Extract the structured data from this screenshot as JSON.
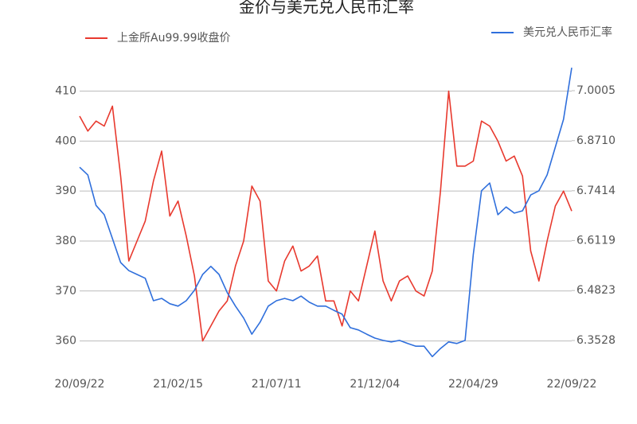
{
  "chart_data": {
    "type": "line",
    "title": "金价与美元兑人民币汇率",
    "categories": [
      "20/09/22",
      null,
      null,
      null,
      null,
      null,
      null,
      null,
      null,
      null,
      null,
      null,
      "21/02/15",
      null,
      null,
      null,
      null,
      null,
      null,
      null,
      null,
      null,
      null,
      null,
      "21/07/11",
      null,
      null,
      null,
      null,
      null,
      null,
      null,
      null,
      null,
      null,
      null,
      "21/12/04",
      null,
      null,
      null,
      null,
      null,
      null,
      null,
      null,
      null,
      null,
      null,
      "22/04/29",
      null,
      null,
      null,
      null,
      null,
      null,
      null,
      null,
      null,
      null,
      null,
      "22/09/22"
    ],
    "series": [
      {
        "name": "上金所Au99.99收盘价",
        "color": "#e8392e",
        "axis": "y",
        "values": [
          405,
          402,
          404,
          403,
          407,
          393,
          376,
          380,
          384,
          392,
          398,
          385,
          388,
          381,
          373,
          360,
          363,
          366,
          368,
          375,
          380,
          391,
          388,
          372,
          370,
          376,
          379,
          374,
          375,
          377,
          368,
          368,
          363,
          370,
          368,
          375,
          382,
          372,
          368,
          372,
          373,
          370,
          369,
          374,
          390,
          410,
          395,
          395,
          396,
          404,
          403,
          400,
          396,
          397,
          393,
          378,
          372,
          380,
          387,
          390,
          386
        ]
      },
      {
        "name": "美元兑人民币汇率",
        "color": "#2f6fdc",
        "axis": "y2",
        "values": [
          6.802,
          6.782,
          6.703,
          6.679,
          6.617,
          6.555,
          6.534,
          6.524,
          6.514,
          6.456,
          6.462,
          6.448,
          6.442,
          6.456,
          6.483,
          6.524,
          6.545,
          6.524,
          6.477,
          6.442,
          6.411,
          6.369,
          6.4,
          6.442,
          6.456,
          6.462,
          6.456,
          6.468,
          6.452,
          6.442,
          6.442,
          6.431,
          6.421,
          6.386,
          6.38,
          6.369,
          6.359,
          6.353,
          6.349,
          6.353,
          6.345,
          6.338,
          6.338,
          6.311,
          6.332,
          6.349,
          6.345,
          6.353,
          6.576,
          6.741,
          6.761,
          6.679,
          6.699,
          6.683,
          6.689,
          6.73,
          6.741,
          6.782,
          6.854,
          6.926,
          7.06
        ]
      }
    ],
    "ylim": [
      355,
      415.5
    ],
    "yticks": [
      360,
      370,
      380,
      390,
      400,
      410
    ],
    "y2lim": [
      6.2868,
      7.0706
    ],
    "y2ticks": [
      {
        "value": 6.3528,
        "label": "6.3528"
      },
      {
        "value": 6.4823,
        "label": "6.4823"
      },
      {
        "value": 6.6119,
        "label": "6.6119"
      },
      {
        "value": 6.741,
        "label": "6.7414"
      },
      {
        "value": 6.871,
        "label": "6.8710"
      },
      {
        "value": 7.0005,
        "label": "7.0005"
      }
    ],
    "grid": true
  }
}
